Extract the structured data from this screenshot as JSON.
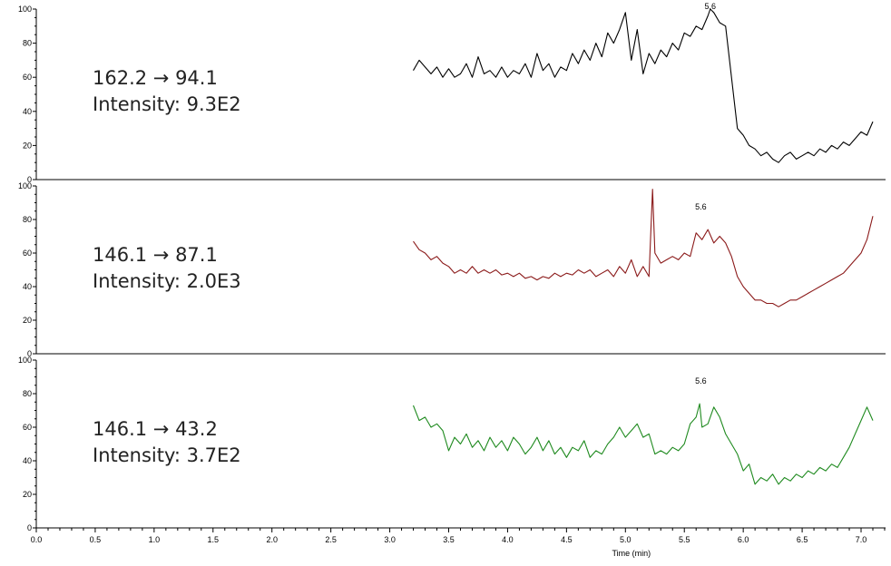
{
  "chart_data": {
    "type": "line",
    "x_axis": {
      "label": "Time (min)",
      "range": [
        0.0,
        7.1
      ],
      "ticks": [
        "0.0",
        "0.5",
        "1.0",
        "1.5",
        "2.0",
        "2.5",
        "3.0",
        "3.5",
        "4.0",
        "4.5",
        "5.0",
        "5.5",
        "6.0",
        "6.5",
        "7.0"
      ]
    },
    "panels": [
      {
        "name": "162.2 → 94.1",
        "transition": "162.2 → 94.1",
        "intensity": "Intensity: 9.3E2",
        "color": "#000000",
        "peak_label": "5.6",
        "peak_x": 5.72,
        "ylim": [
          0,
          100
        ],
        "y_ticks": [
          "100",
          "80",
          "60",
          "40",
          "20",
          "0"
        ],
        "points": [
          [
            3.2,
            64
          ],
          [
            3.25,
            70
          ],
          [
            3.3,
            66
          ],
          [
            3.35,
            62
          ],
          [
            3.4,
            66
          ],
          [
            3.45,
            60
          ],
          [
            3.5,
            65
          ],
          [
            3.55,
            60
          ],
          [
            3.6,
            62
          ],
          [
            3.65,
            68
          ],
          [
            3.7,
            60
          ],
          [
            3.75,
            72
          ],
          [
            3.8,
            62
          ],
          [
            3.85,
            64
          ],
          [
            3.9,
            60
          ],
          [
            3.95,
            66
          ],
          [
            4.0,
            60
          ],
          [
            4.05,
            64
          ],
          [
            4.1,
            62
          ],
          [
            4.15,
            68
          ],
          [
            4.2,
            60
          ],
          [
            4.25,
            74
          ],
          [
            4.3,
            64
          ],
          [
            4.35,
            68
          ],
          [
            4.4,
            60
          ],
          [
            4.45,
            66
          ],
          [
            4.5,
            64
          ],
          [
            4.55,
            74
          ],
          [
            4.6,
            68
          ],
          [
            4.65,
            76
          ],
          [
            4.7,
            70
          ],
          [
            4.75,
            80
          ],
          [
            4.8,
            72
          ],
          [
            4.85,
            86
          ],
          [
            4.9,
            80
          ],
          [
            4.95,
            88
          ],
          [
            5.0,
            98
          ],
          [
            5.05,
            70
          ],
          [
            5.1,
            88
          ],
          [
            5.15,
            62
          ],
          [
            5.2,
            74
          ],
          [
            5.25,
            68
          ],
          [
            5.3,
            76
          ],
          [
            5.35,
            72
          ],
          [
            5.4,
            80
          ],
          [
            5.45,
            76
          ],
          [
            5.5,
            86
          ],
          [
            5.55,
            84
          ],
          [
            5.6,
            90
          ],
          [
            5.65,
            88
          ],
          [
            5.7,
            96
          ],
          [
            5.72,
            100
          ],
          [
            5.75,
            98
          ],
          [
            5.8,
            92
          ],
          [
            5.85,
            90
          ],
          [
            5.9,
            60
          ],
          [
            5.95,
            30
          ],
          [
            6.0,
            26
          ],
          [
            6.05,
            20
          ],
          [
            6.1,
            18
          ],
          [
            6.15,
            14
          ],
          [
            6.2,
            16
          ],
          [
            6.25,
            12
          ],
          [
            6.3,
            10
          ],
          [
            6.35,
            14
          ],
          [
            6.4,
            16
          ],
          [
            6.45,
            12
          ],
          [
            6.5,
            14
          ],
          [
            6.55,
            16
          ],
          [
            6.6,
            14
          ],
          [
            6.65,
            18
          ],
          [
            6.7,
            16
          ],
          [
            6.75,
            20
          ],
          [
            6.8,
            18
          ],
          [
            6.85,
            22
          ],
          [
            6.9,
            20
          ],
          [
            6.95,
            24
          ],
          [
            7.0,
            28
          ],
          [
            7.05,
            26
          ],
          [
            7.1,
            34
          ]
        ]
      },
      {
        "name": "146.1 → 87.1",
        "transition": "146.1 → 87.1",
        "intensity": "Intensity: 2.0E3",
        "color": "#8b1a1a",
        "peak_label": "5.6",
        "peak_x": 5.64,
        "ylim": [
          0,
          100
        ],
        "y_ticks": [
          "100",
          "80",
          "60",
          "40",
          "20",
          "0"
        ],
        "points": [
          [
            3.2,
            67
          ],
          [
            3.25,
            62
          ],
          [
            3.3,
            60
          ],
          [
            3.35,
            56
          ],
          [
            3.4,
            58
          ],
          [
            3.45,
            54
          ],
          [
            3.5,
            52
          ],
          [
            3.55,
            48
          ],
          [
            3.6,
            50
          ],
          [
            3.65,
            48
          ],
          [
            3.7,
            52
          ],
          [
            3.75,
            48
          ],
          [
            3.8,
            50
          ],
          [
            3.85,
            48
          ],
          [
            3.9,
            50
          ],
          [
            3.95,
            47
          ],
          [
            4.0,
            48
          ],
          [
            4.05,
            46
          ],
          [
            4.1,
            48
          ],
          [
            4.15,
            45
          ],
          [
            4.2,
            46
          ],
          [
            4.25,
            44
          ],
          [
            4.3,
            46
          ],
          [
            4.35,
            45
          ],
          [
            4.4,
            48
          ],
          [
            4.45,
            46
          ],
          [
            4.5,
            48
          ],
          [
            4.55,
            47
          ],
          [
            4.6,
            50
          ],
          [
            4.65,
            48
          ],
          [
            4.7,
            50
          ],
          [
            4.75,
            46
          ],
          [
            4.8,
            48
          ],
          [
            4.85,
            50
          ],
          [
            4.9,
            46
          ],
          [
            4.95,
            52
          ],
          [
            5.0,
            48
          ],
          [
            5.05,
            56
          ],
          [
            5.1,
            46
          ],
          [
            5.15,
            52
          ],
          [
            5.2,
            46
          ],
          [
            5.23,
            98
          ],
          [
            5.25,
            60
          ],
          [
            5.3,
            54
          ],
          [
            5.35,
            56
          ],
          [
            5.4,
            58
          ],
          [
            5.45,
            56
          ],
          [
            5.5,
            60
          ],
          [
            5.55,
            58
          ],
          [
            5.6,
            72
          ],
          [
            5.65,
            68
          ],
          [
            5.7,
            74
          ],
          [
            5.75,
            66
          ],
          [
            5.8,
            70
          ],
          [
            5.85,
            66
          ],
          [
            5.9,
            58
          ],
          [
            5.95,
            46
          ],
          [
            6.0,
            40
          ],
          [
            6.05,
            36
          ],
          [
            6.1,
            32
          ],
          [
            6.15,
            32
          ],
          [
            6.2,
            30
          ],
          [
            6.25,
            30
          ],
          [
            6.3,
            28
          ],
          [
            6.35,
            30
          ],
          [
            6.4,
            32
          ],
          [
            6.45,
            32
          ],
          [
            6.5,
            34
          ],
          [
            6.55,
            36
          ],
          [
            6.6,
            38
          ],
          [
            6.65,
            40
          ],
          [
            6.7,
            42
          ],
          [
            6.75,
            44
          ],
          [
            6.8,
            46
          ],
          [
            6.85,
            48
          ],
          [
            6.9,
            52
          ],
          [
            6.95,
            56
          ],
          [
            7.0,
            60
          ],
          [
            7.05,
            68
          ],
          [
            7.1,
            82
          ]
        ]
      },
      {
        "name": "146.1 → 43.2",
        "transition": "146.1 → 43.2",
        "intensity": "Intensity: 3.7E2",
        "color": "#1f8a1f",
        "peak_label": "5.6",
        "peak_x": 5.64,
        "ylim": [
          0,
          100
        ],
        "y_ticks": [
          "100",
          "80",
          "60",
          "40",
          "20",
          "0"
        ],
        "points": [
          [
            3.2,
            73
          ],
          [
            3.25,
            64
          ],
          [
            3.3,
            66
          ],
          [
            3.35,
            60
          ],
          [
            3.4,
            62
          ],
          [
            3.45,
            58
          ],
          [
            3.5,
            46
          ],
          [
            3.55,
            54
          ],
          [
            3.6,
            50
          ],
          [
            3.65,
            56
          ],
          [
            3.7,
            48
          ],
          [
            3.75,
            52
          ],
          [
            3.8,
            46
          ],
          [
            3.85,
            54
          ],
          [
            3.9,
            48
          ],
          [
            3.95,
            52
          ],
          [
            4.0,
            46
          ],
          [
            4.05,
            54
          ],
          [
            4.1,
            50
          ],
          [
            4.15,
            44
          ],
          [
            4.2,
            48
          ],
          [
            4.25,
            54
          ],
          [
            4.3,
            46
          ],
          [
            4.35,
            52
          ],
          [
            4.4,
            44
          ],
          [
            4.45,
            48
          ],
          [
            4.5,
            42
          ],
          [
            4.55,
            48
          ],
          [
            4.6,
            46
          ],
          [
            4.65,
            52
          ],
          [
            4.7,
            42
          ],
          [
            4.75,
            46
          ],
          [
            4.8,
            44
          ],
          [
            4.85,
            50
          ],
          [
            4.9,
            54
          ],
          [
            4.95,
            60
          ],
          [
            5.0,
            54
          ],
          [
            5.05,
            58
          ],
          [
            5.1,
            62
          ],
          [
            5.15,
            54
          ],
          [
            5.2,
            56
          ],
          [
            5.25,
            44
          ],
          [
            5.3,
            46
          ],
          [
            5.35,
            44
          ],
          [
            5.4,
            48
          ],
          [
            5.45,
            46
          ],
          [
            5.5,
            50
          ],
          [
            5.55,
            62
          ],
          [
            5.6,
            66
          ],
          [
            5.63,
            74
          ],
          [
            5.65,
            60
          ],
          [
            5.7,
            62
          ],
          [
            5.75,
            72
          ],
          [
            5.8,
            66
          ],
          [
            5.85,
            56
          ],
          [
            5.9,
            50
          ],
          [
            5.95,
            44
          ],
          [
            6.0,
            34
          ],
          [
            6.05,
            38
          ],
          [
            6.1,
            26
          ],
          [
            6.15,
            30
          ],
          [
            6.2,
            28
          ],
          [
            6.25,
            32
          ],
          [
            6.3,
            26
          ],
          [
            6.35,
            30
          ],
          [
            6.4,
            28
          ],
          [
            6.45,
            32
          ],
          [
            6.5,
            30
          ],
          [
            6.55,
            34
          ],
          [
            6.6,
            32
          ],
          [
            6.65,
            36
          ],
          [
            6.7,
            34
          ],
          [
            6.75,
            38
          ],
          [
            6.8,
            36
          ],
          [
            6.85,
            42
          ],
          [
            6.9,
            48
          ],
          [
            6.95,
            56
          ],
          [
            7.0,
            64
          ],
          [
            7.05,
            72
          ],
          [
            7.1,
            64
          ]
        ]
      }
    ]
  }
}
